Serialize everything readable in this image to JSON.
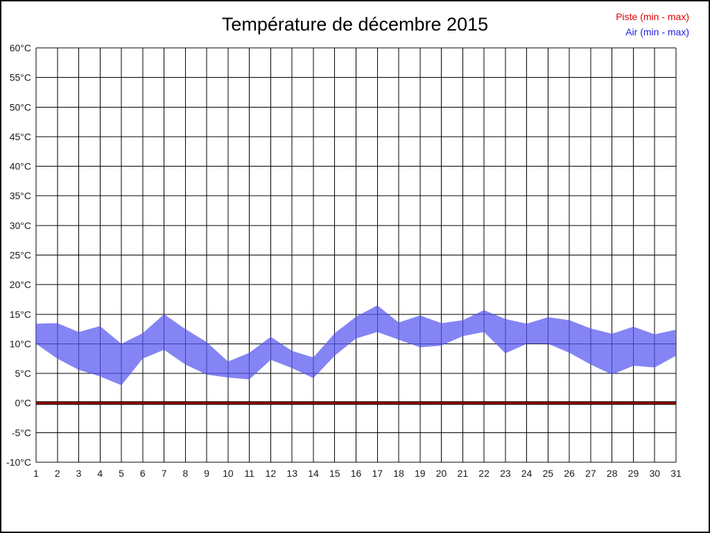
{
  "page": {
    "title": "Température de décembre 2015"
  },
  "legend": {
    "piste_label": "Piste (min - max)",
    "air_label": "Air (min - max)",
    "piste_color": "#e00000",
    "air_color": "#2020e0"
  },
  "chart_data": {
    "type": "area",
    "title": "Température de décembre 2015",
    "xlabel": "",
    "ylabel": "",
    "grid": true,
    "legend_position": "top-right",
    "x": [
      1,
      2,
      3,
      4,
      5,
      6,
      7,
      8,
      9,
      10,
      11,
      12,
      13,
      14,
      15,
      16,
      17,
      18,
      19,
      20,
      21,
      22,
      23,
      24,
      25,
      26,
      27,
      28,
      29,
      30,
      31
    ],
    "ylim": [
      -10,
      60
    ],
    "yticks": {
      "values": [
        60,
        55,
        50,
        45,
        40,
        35,
        30,
        25,
        20,
        15,
        10,
        5,
        0,
        -5,
        -10
      ],
      "labels": [
        "60°C",
        "55°C",
        "50°C",
        "45°C",
        "40°C",
        "35°C",
        "30°C",
        "25°C",
        "20°C",
        "15°C",
        "10°C",
        "5°C",
        "0°C",
        "-5°C",
        "-10°C"
      ]
    },
    "series": [
      {
        "name": "Piste (min - max)",
        "color": "#990000",
        "outline": "#000000",
        "min": [
          0,
          0,
          0,
          0,
          0,
          0,
          0,
          0,
          0,
          0,
          0,
          0,
          0,
          0,
          0,
          0,
          0,
          0,
          0,
          0,
          0,
          0,
          0,
          0,
          0,
          0,
          0,
          0,
          0,
          0,
          0
        ],
        "max": [
          0,
          0,
          0,
          0,
          0,
          0,
          0,
          0,
          0,
          0,
          0,
          0,
          0,
          0,
          0,
          0,
          0,
          0,
          0,
          0,
          0,
          0,
          0,
          0,
          0,
          0,
          0,
          0,
          0,
          0,
          0
        ]
      },
      {
        "name": "Air (min - max)",
        "color": "#5555f0",
        "opacity": 0.72,
        "min": [
          10,
          7.5,
          5.6,
          4.5,
          3,
          7.5,
          9,
          6.5,
          4.8,
          4.3,
          4,
          7.3,
          5.9,
          4.2,
          8,
          10.9,
          12,
          10.7,
          9.4,
          9.7,
          11.3,
          12,
          8.4,
          10,
          10,
          8.5,
          6.5,
          4.8,
          6.3,
          6,
          8
        ],
        "max": [
          13.4,
          13.5,
          12,
          13,
          10,
          11.8,
          15,
          12.5,
          10.3,
          7,
          8.5,
          11.2,
          8.8,
          7.7,
          11.8,
          14.6,
          16.5,
          13.6,
          14.8,
          13.5,
          14,
          15.7,
          14.2,
          13.4,
          14.5,
          14,
          12.6,
          11.7,
          12.9,
          11.6,
          12.4
        ]
      }
    ]
  }
}
